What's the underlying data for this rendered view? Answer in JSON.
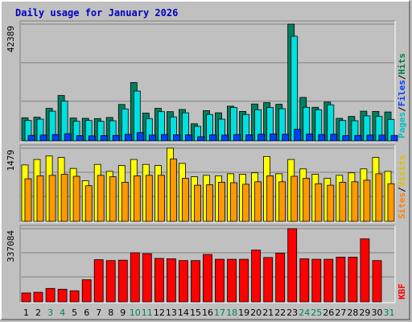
{
  "chart_data": {
    "title": "Daily usage for January 2026",
    "days": [
      "1",
      "2",
      "3",
      "4",
      "5",
      "6",
      "7",
      "8",
      "9",
      "10",
      "11",
      "12",
      "13",
      "14",
      "15",
      "16",
      "17",
      "18",
      "19",
      "20",
      "21",
      "22",
      "23",
      "24",
      "25",
      "26",
      "27",
      "28",
      "29",
      "30",
      "31"
    ],
    "weekend_days": [
      "3",
      "4",
      "10",
      "11",
      "17",
      "18",
      "24",
      "25",
      "31"
    ],
    "panels": [
      {
        "type": "bar",
        "ymax_label": "42389",
        "ymax": 42389,
        "legend": [
          "Pages",
          "/",
          "Files",
          "/",
          "Hits"
        ],
        "legend_colors": [
          "#00c0c0",
          "#000000",
          "#0040ff",
          "#000000",
          "#008040"
        ],
        "series": [
          {
            "name": "Hits",
            "color": "#008060",
            "values": [
              8400,
              8600,
              11800,
              16500,
              8300,
              8200,
              8100,
              8500,
              13200,
              21200,
              10100,
              11800,
              10600,
              11400,
              6200,
              11000,
              10200,
              12600,
              10700,
              13400,
              13900,
              13300,
              42389,
              15800,
              12200,
              14100,
              8200,
              8900,
              10800,
              10700,
              10500
            ]
          },
          {
            "name": "Files",
            "color": "#00e0e0",
            "values": [
              7400,
              7900,
              10800,
              14400,
              7100,
              7400,
              7100,
              7300,
              11600,
              18100,
              8100,
              10600,
              8700,
              10200,
              5300,
              9600,
              7900,
              12100,
              9600,
              11300,
              12100,
              11700,
              38000,
              12200,
              11300,
              13100,
              7400,
              7300,
              9100,
              8900,
              7800
            ]
          },
          {
            "name": "Pages",
            "color": "#0040ff",
            "values": [
              2000,
              2100,
              2300,
              2600,
              1900,
              1800,
              1900,
              2000,
              2400,
              3000,
              2100,
              2300,
              2200,
              2200,
              1500,
              2200,
              2100,
              2300,
              2200,
              2400,
              2500,
              2400,
              4200,
              2500,
              2300,
              2400,
              1900,
              2000,
              2100,
              2100,
              2000
            ]
          }
        ]
      },
      {
        "type": "bar",
        "ymax_label": "1479",
        "ymax": 1479,
        "legend": [
          "Sites",
          "/",
          "Visits"
        ],
        "legend_colors": [
          "#ff8000",
          "#000000",
          "#e0c000"
        ],
        "series": [
          {
            "name": "Visits",
            "color": "#ffff00",
            "values": [
              1140,
              1250,
              1320,
              1290,
              1070,
              820,
              1150,
              1010,
              1130,
              1250,
              1150,
              1130,
              1479,
              1170,
              900,
              930,
              920,
              960,
              950,
              980,
              1310,
              960,
              1250,
              1060,
              950,
              870,
              930,
              980,
              1060,
              1290,
              1010
            ]
          },
          {
            "name": "Sites",
            "color": "#ff9900",
            "values": [
              860,
              920,
              930,
              950,
              910,
              720,
              930,
              900,
              790,
              920,
              930,
              930,
              1260,
              870,
              730,
              740,
              790,
              780,
              750,
              800,
              920,
              800,
              910,
              870,
              760,
              730,
              790,
              800,
              830,
              960,
              760
            ]
          }
        ]
      },
      {
        "type": "bar",
        "ymax_label": "337084",
        "ymax": 337084,
        "legend": [
          "KB",
          "F"
        ],
        "legend_colors": [
          "#ff0000",
          "#ff0000"
        ],
        "series": [
          {
            "name": "KBytes",
            "color": "#ff0000",
            "values": [
              41000,
              44000,
              62000,
              58000,
              51000,
              102000,
              194000,
              190000,
              192000,
              226000,
              222000,
              200000,
              198000,
              190000,
              190000,
              218000,
              196000,
              196000,
              196000,
              238000,
              204000,
              224000,
              337084,
              198000,
              196000,
              196000,
              206000,
              206000,
              290000,
              190000,
              0
            ]
          }
        ]
      }
    ]
  }
}
